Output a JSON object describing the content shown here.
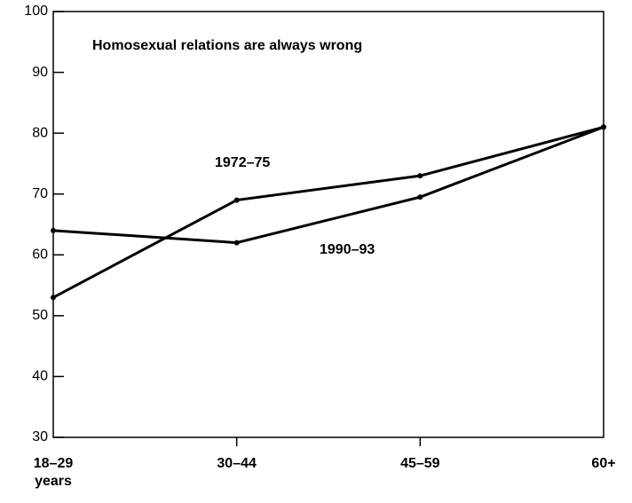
{
  "chart_data": {
    "type": "line",
    "title": "Homosexual relations are always wrong",
    "categories": [
      "18–29 years",
      "30–44",
      "45–59",
      "60+"
    ],
    "series": [
      {
        "name": "1972–75",
        "color": "#000000",
        "values": [
          53,
          69,
          73,
          81
        ]
      },
      {
        "name": "1990–93",
        "color": "#000000",
        "values": [
          64,
          62,
          69.5,
          81
        ]
      }
    ],
    "ylim": [
      30,
      100
    ],
    "yticks": [
      30,
      40,
      50,
      60,
      70,
      80,
      90,
      100
    ],
    "grid": false
  }
}
